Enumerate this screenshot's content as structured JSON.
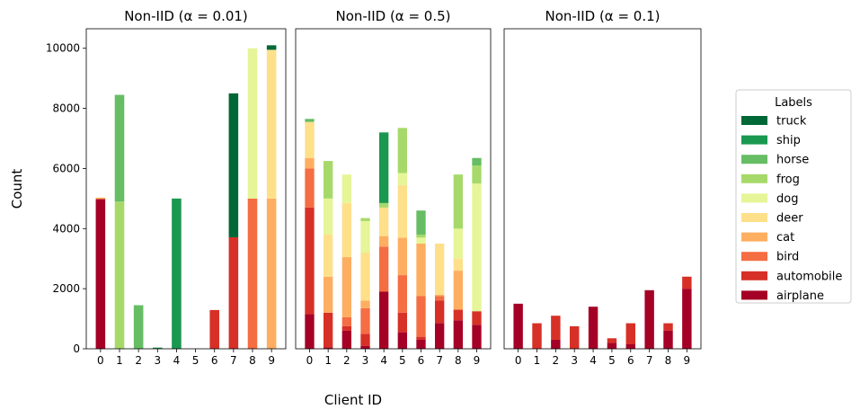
{
  "figure": {
    "ylabel": "Count",
    "xlabel": "Client ID"
  },
  "legend": {
    "title": "Labels",
    "placement": "right"
  },
  "colors": {
    "airplane": "#a50026",
    "automobile": "#d73027",
    "bird": "#f46d43",
    "cat": "#fdae61",
    "deer": "#fee08b",
    "dog": "#e6f598",
    "frog": "#a6d96a",
    "horse": "#66bd63",
    "ship": "#1a9850",
    "truck": "#006837"
  },
  "chart_data": [
    {
      "type": "bar",
      "stacked": true,
      "title": "Non-IID (α = 0.01)",
      "categories": [
        "0",
        "1",
        "2",
        "3",
        "4",
        "5",
        "6",
        "7",
        "8",
        "9"
      ],
      "ylim": [
        0,
        10650
      ],
      "yticks": [
        0,
        2000,
        4000,
        6000,
        8000,
        10000
      ],
      "series": [
        {
          "name": "airplane",
          "values": [
            4980,
            0,
            0,
            0,
            0,
            0,
            0,
            0,
            0,
            0
          ]
        },
        {
          "name": "automobile",
          "values": [
            0,
            0,
            0,
            0,
            0,
            0,
            1290,
            3710,
            0,
            0
          ]
        },
        {
          "name": "bird",
          "values": [
            0,
            0,
            0,
            0,
            0,
            0,
            0,
            0,
            5000,
            0
          ]
        },
        {
          "name": "cat",
          "values": [
            50,
            0,
            0,
            0,
            0,
            0,
            0,
            0,
            0,
            5000
          ]
        },
        {
          "name": "deer",
          "values": [
            0,
            0,
            0,
            0,
            0,
            0,
            0,
            0,
            0,
            4950
          ]
        },
        {
          "name": "dog",
          "values": [
            0,
            0,
            0,
            0,
            0,
            0,
            0,
            0,
            5000,
            0
          ]
        },
        {
          "name": "frog",
          "values": [
            0,
            4900,
            0,
            0,
            0,
            0,
            0,
            0,
            0,
            0
          ]
        },
        {
          "name": "horse",
          "values": [
            0,
            3550,
            1450,
            0,
            0,
            0,
            0,
            0,
            0,
            0
          ]
        },
        {
          "name": "ship",
          "values": [
            0,
            0,
            0,
            40,
            5000,
            0,
            0,
            0,
            0,
            0
          ]
        },
        {
          "name": "truck",
          "values": [
            0,
            0,
            0,
            0,
            0,
            0,
            0,
            4790,
            0,
            150
          ]
        }
      ]
    },
    {
      "type": "bar",
      "stacked": true,
      "title": "Non-IID (α = 0.5)",
      "categories": [
        "0",
        "1",
        "2",
        "3",
        "4",
        "5",
        "6",
        "7",
        "8",
        "9"
      ],
      "ylim": [
        0,
        10650
      ],
      "series": [
        {
          "name": "airplane",
          "values": [
            1150,
            50,
            600,
            100,
            1900,
            550,
            300,
            850,
            950,
            800
          ]
        },
        {
          "name": "automobile",
          "values": [
            3550,
            1150,
            150,
            400,
            0,
            650,
            100,
            750,
            350,
            450
          ]
        },
        {
          "name": "bird",
          "values": [
            1300,
            0,
            300,
            850,
            1500,
            1250,
            1350,
            150,
            0,
            0
          ]
        },
        {
          "name": "cat",
          "values": [
            350,
            1200,
            2000,
            250,
            350,
            1250,
            1750,
            50,
            1300,
            0
          ]
        },
        {
          "name": "deer",
          "values": [
            1200,
            1400,
            1800,
            1600,
            950,
            1750,
            0,
            1700,
            400,
            0
          ]
        },
        {
          "name": "dog",
          "values": [
            0,
            1200,
            950,
            1050,
            0,
            400,
            200,
            0,
            1000,
            4250
          ]
        },
        {
          "name": "frog",
          "values": [
            0,
            1250,
            0,
            100,
            150,
            1500,
            100,
            0,
            1800,
            600
          ]
        },
        {
          "name": "horse",
          "values": [
            100,
            0,
            0,
            0,
            0,
            0,
            800,
            0,
            0,
            250
          ]
        },
        {
          "name": "ship",
          "values": [
            0,
            0,
            0,
            0,
            2350,
            0,
            0,
            0,
            0,
            0
          ]
        },
        {
          "name": "truck",
          "values": [
            0,
            0,
            0,
            0,
            0,
            0,
            0,
            0,
            0,
            0
          ]
        }
      ]
    },
    {
      "type": "bar",
      "stacked": true,
      "title": "Non-IID (α = 0.1)",
      "categories": [
        "0",
        "1",
        "2",
        "3",
        "4",
        "5",
        "6",
        "7",
        "8",
        "9"
      ],
      "ylim": [
        0,
        10650
      ],
      "series": [
        {
          "name": "airplane",
          "values": [
            1500,
            0,
            300,
            0,
            1400,
            200,
            150,
            1950,
            600,
            2000
          ]
        },
        {
          "name": "automobile",
          "values": [
            0,
            850,
            800,
            750,
            0,
            150,
            700,
            0,
            250,
            400
          ]
        },
        {
          "name": "bird",
          "values": [
            0,
            0,
            0,
            0,
            0,
            0,
            0,
            0,
            0,
            0
          ]
        },
        {
          "name": "cat",
          "values": [
            0,
            0,
            0,
            0,
            0,
            0,
            0,
            0,
            0,
            0
          ]
        },
        {
          "name": "deer",
          "values": [
            0,
            0,
            0,
            0,
            0,
            0,
            0,
            0,
            0,
            0
          ]
        },
        {
          "name": "dog",
          "values": [
            0,
            0,
            0,
            0,
            0,
            0,
            0,
            0,
            0,
            0
          ]
        },
        {
          "name": "frog",
          "values": [
            0,
            0,
            0,
            0,
            0,
            0,
            0,
            0,
            0,
            0
          ]
        },
        {
          "name": "horse",
          "values": [
            0,
            0,
            0,
            0,
            0,
            0,
            0,
            0,
            0,
            0
          ]
        },
        {
          "name": "ship",
          "values": [
            0,
            0,
            0,
            0,
            0,
            0,
            0,
            0,
            0,
            0
          ]
        },
        {
          "name": "truck",
          "values": [
            0,
            0,
            0,
            0,
            0,
            0,
            0,
            0,
            0,
            0
          ]
        }
      ]
    }
  ]
}
